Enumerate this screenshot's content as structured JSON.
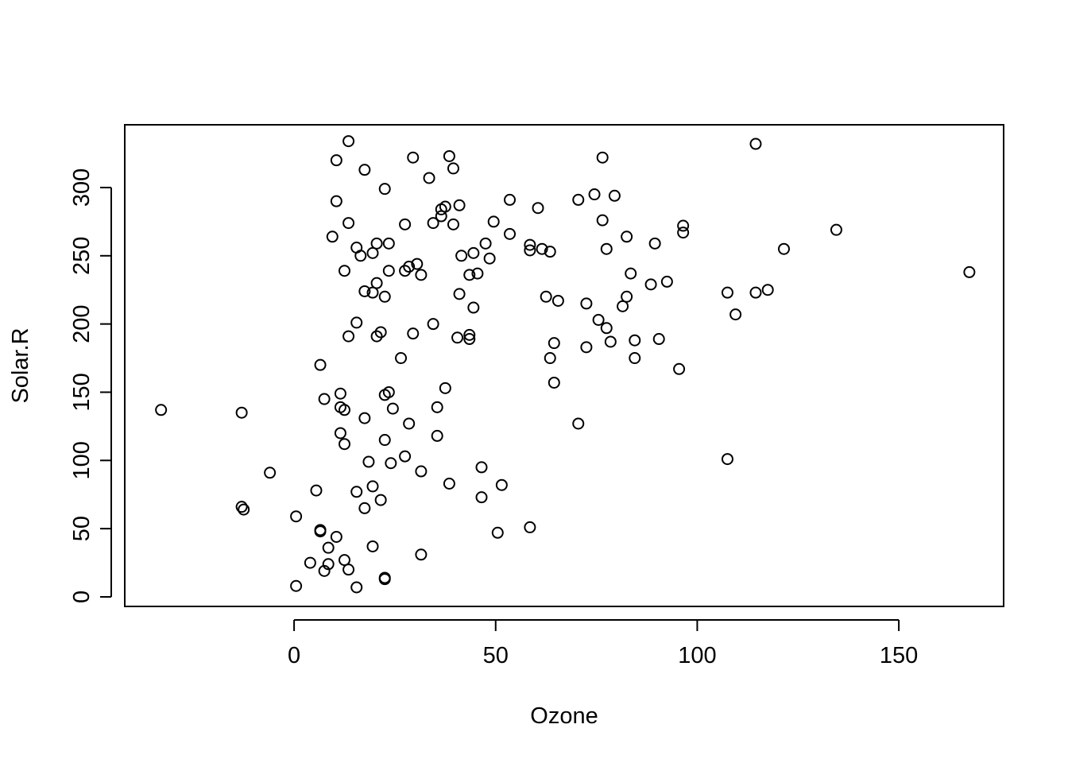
{
  "chart_data": {
    "type": "scatter",
    "title": "",
    "xlabel": "Ozone",
    "ylabel": "Solar.R",
    "xlim": [
      -42,
      176
    ],
    "ylim": [
      -7,
      346
    ],
    "x_ticks": [
      0,
      50,
      100,
      150
    ],
    "y_ticks": [
      0,
      50,
      100,
      150,
      200,
      250,
      300
    ],
    "x_tick_labels": [
      "0",
      "50",
      "100",
      "150"
    ],
    "y_tick_labels": [
      "0",
      "50",
      "100",
      "150",
      "200",
      "250",
      "300"
    ],
    "grid": false,
    "legend": "none",
    "marker": "open-circle",
    "marker_color": "#000000",
    "points": [
      {
        "x": -33,
        "y": 137
      },
      {
        "x": -13,
        "y": 135
      },
      {
        "x": -13,
        "y": 66
      },
      {
        "x": -12.5,
        "y": 64
      },
      {
        "x": -6,
        "y": 91
      },
      {
        "x": 0.5,
        "y": 59
      },
      {
        "x": 0.5,
        "y": 8
      },
      {
        "x": 4,
        "y": 25
      },
      {
        "x": 5.5,
        "y": 78
      },
      {
        "x": 6.5,
        "y": 170
      },
      {
        "x": 6.5,
        "y": 49
      },
      {
        "x": 6.5,
        "y": 48
      },
      {
        "x": 7.5,
        "y": 145
      },
      {
        "x": 7.5,
        "y": 19
      },
      {
        "x": 8.5,
        "y": 36
      },
      {
        "x": 8.5,
        "y": 24
      },
      {
        "x": 9.5,
        "y": 264
      },
      {
        "x": 10.5,
        "y": 320
      },
      {
        "x": 10.5,
        "y": 290
      },
      {
        "x": 10.5,
        "y": 44
      },
      {
        "x": 11.5,
        "y": 149
      },
      {
        "x": 11.5,
        "y": 139
      },
      {
        "x": 11.5,
        "y": 120
      },
      {
        "x": 12.5,
        "y": 239
      },
      {
        "x": 12.5,
        "y": 137
      },
      {
        "x": 12.5,
        "y": 112
      },
      {
        "x": 12.5,
        "y": 27
      },
      {
        "x": 13.5,
        "y": 274
      },
      {
        "x": 13.5,
        "y": 191
      },
      {
        "x": 13.5,
        "y": 20
      },
      {
        "x": 13.5,
        "y": 334
      },
      {
        "x": 15.5,
        "y": 256
      },
      {
        "x": 15.5,
        "y": 201
      },
      {
        "x": 15.5,
        "y": 77
      },
      {
        "x": 15.5,
        "y": 7
      },
      {
        "x": 16.5,
        "y": 250
      },
      {
        "x": 17.5,
        "y": 313
      },
      {
        "x": 17.5,
        "y": 224
      },
      {
        "x": 17.5,
        "y": 131
      },
      {
        "x": 17.5,
        "y": 65
      },
      {
        "x": 18.5,
        "y": 99
      },
      {
        "x": 19.5,
        "y": 252
      },
      {
        "x": 19.5,
        "y": 223
      },
      {
        "x": 19.5,
        "y": 81
      },
      {
        "x": 19.5,
        "y": 37
      },
      {
        "x": 20.5,
        "y": 259
      },
      {
        "x": 20.5,
        "y": 230
      },
      {
        "x": 20.5,
        "y": 191
      },
      {
        "x": 21.5,
        "y": 194
      },
      {
        "x": 21.5,
        "y": 71
      },
      {
        "x": 22.5,
        "y": 299
      },
      {
        "x": 22.5,
        "y": 220
      },
      {
        "x": 22.5,
        "y": 148
      },
      {
        "x": 22.5,
        "y": 115
      },
      {
        "x": 22.5,
        "y": 14
      },
      {
        "x": 22.5,
        "y": 13
      },
      {
        "x": 23.5,
        "y": 259
      },
      {
        "x": 23.5,
        "y": 239
      },
      {
        "x": 23.5,
        "y": 150
      },
      {
        "x": 24.5,
        "y": 138
      },
      {
        "x": 24,
        "y": 98
      },
      {
        "x": 26.5,
        "y": 175
      },
      {
        "x": 27.5,
        "y": 273
      },
      {
        "x": 27.5,
        "y": 239
      },
      {
        "x": 27.5,
        "y": 103
      },
      {
        "x": 28.5,
        "y": 242
      },
      {
        "x": 28.5,
        "y": 127
      },
      {
        "x": 29.5,
        "y": 322
      },
      {
        "x": 29.5,
        "y": 193
      },
      {
        "x": 30.5,
        "y": 244
      },
      {
        "x": 31.5,
        "y": 236
      },
      {
        "x": 31.5,
        "y": 92
      },
      {
        "x": 31.5,
        "y": 31
      },
      {
        "x": 33.5,
        "y": 307
      },
      {
        "x": 34.5,
        "y": 274
      },
      {
        "x": 34.5,
        "y": 200
      },
      {
        "x": 35.5,
        "y": 139
      },
      {
        "x": 35.5,
        "y": 118
      },
      {
        "x": 36.5,
        "y": 284
      },
      {
        "x": 36.5,
        "y": 279
      },
      {
        "x": 37.5,
        "y": 286
      },
      {
        "x": 37.5,
        "y": 153
      },
      {
        "x": 38.5,
        "y": 323
      },
      {
        "x": 38.5,
        "y": 83
      },
      {
        "x": 39.5,
        "y": 314
      },
      {
        "x": 39.5,
        "y": 273
      },
      {
        "x": 40.5,
        "y": 190
      },
      {
        "x": 41,
        "y": 287
      },
      {
        "x": 41.5,
        "y": 250
      },
      {
        "x": 41,
        "y": 222
      },
      {
        "x": 43.5,
        "y": 236
      },
      {
        "x": 43.5,
        "y": 192
      },
      {
        "x": 43.5,
        "y": 189
      },
      {
        "x": 44.5,
        "y": 252
      },
      {
        "x": 44.5,
        "y": 212
      },
      {
        "x": 45.5,
        "y": 237
      },
      {
        "x": 46.5,
        "y": 95
      },
      {
        "x": 46.5,
        "y": 73
      },
      {
        "x": 47.5,
        "y": 259
      },
      {
        "x": 48.5,
        "y": 248
      },
      {
        "x": 49.5,
        "y": 275
      },
      {
        "x": 50.5,
        "y": 47
      },
      {
        "x": 51.5,
        "y": 82
      },
      {
        "x": 53.5,
        "y": 291
      },
      {
        "x": 53.5,
        "y": 266
      },
      {
        "x": 58.5,
        "y": 258
      },
      {
        "x": 58.5,
        "y": 254
      },
      {
        "x": 58.5,
        "y": 51
      },
      {
        "x": 60.5,
        "y": 285
      },
      {
        "x": 61.5,
        "y": 255
      },
      {
        "x": 62.5,
        "y": 220
      },
      {
        "x": 63.5,
        "y": 253
      },
      {
        "x": 63.5,
        "y": 175
      },
      {
        "x": 64.5,
        "y": 186
      },
      {
        "x": 64.5,
        "y": 157
      },
      {
        "x": 65.5,
        "y": 217
      },
      {
        "x": 70.5,
        "y": 291
      },
      {
        "x": 70.5,
        "y": 127
      },
      {
        "x": 72.5,
        "y": 215
      },
      {
        "x": 72.5,
        "y": 183
      },
      {
        "x": 74.5,
        "y": 295
      },
      {
        "x": 75.5,
        "y": 203
      },
      {
        "x": 76.5,
        "y": 322
      },
      {
        "x": 76.5,
        "y": 276
      },
      {
        "x": 77.5,
        "y": 255
      },
      {
        "x": 77.5,
        "y": 197
      },
      {
        "x": 78.5,
        "y": 187
      },
      {
        "x": 79.5,
        "y": 294
      },
      {
        "x": 81.5,
        "y": 213
      },
      {
        "x": 82.5,
        "y": 264
      },
      {
        "x": 82.5,
        "y": 220
      },
      {
        "x": 83.5,
        "y": 237
      },
      {
        "x": 84.5,
        "y": 188
      },
      {
        "x": 84.5,
        "y": 175
      },
      {
        "x": 88.5,
        "y": 229
      },
      {
        "x": 89.5,
        "y": 259
      },
      {
        "x": 90.5,
        "y": 189
      },
      {
        "x": 92.5,
        "y": 231
      },
      {
        "x": 95.5,
        "y": 167
      },
      {
        "x": 96.5,
        "y": 272
      },
      {
        "x": 96.5,
        "y": 267
      },
      {
        "x": 107.5,
        "y": 223
      },
      {
        "x": 107.5,
        "y": 101
      },
      {
        "x": 109.5,
        "y": 207
      },
      {
        "x": 114.5,
        "y": 223
      },
      {
        "x": 114.5,
        "y": 332
      },
      {
        "x": 117.5,
        "y": 225
      },
      {
        "x": 121.5,
        "y": 255
      },
      {
        "x": 134.5,
        "y": 269
      },
      {
        "x": 167.5,
        "y": 238
      }
    ]
  }
}
